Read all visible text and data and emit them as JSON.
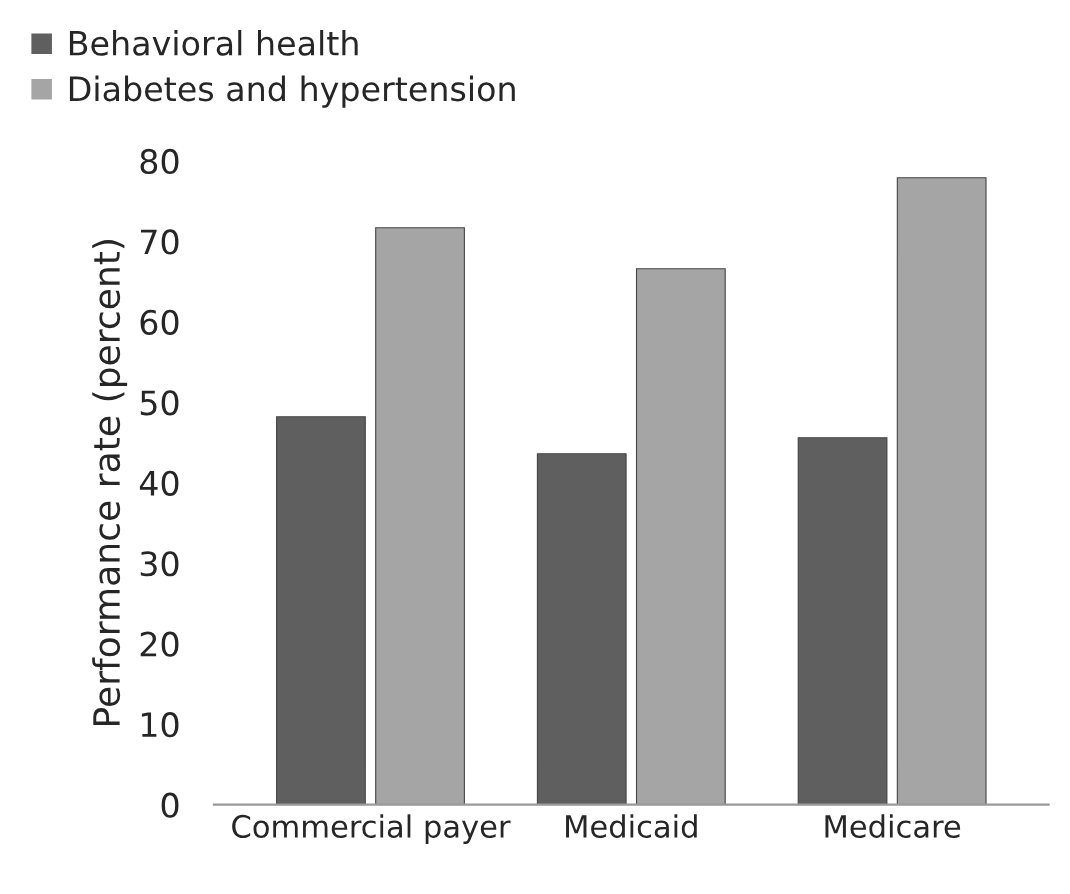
{
  "chart_data": {
    "type": "bar",
    "ylabel": "Performance rate (percent)",
    "categories": [
      "Commercial payer",
      "Medicaid",
      "Medicare"
    ],
    "series": [
      {
        "name": "Behavioral health",
        "color": "#5f5f5f",
        "values": [
          48.2,
          43.6,
          45.6
        ]
      },
      {
        "name": "Diabetes and hypertension",
        "color": "#a5a5a5",
        "values": [
          71.7,
          66.6,
          77.9
        ]
      }
    ],
    "ylim": [
      0,
      80
    ],
    "yticks": [
      0,
      10,
      20,
      30,
      40,
      50,
      60,
      70,
      80
    ],
    "grid": false,
    "legend": "top left"
  }
}
